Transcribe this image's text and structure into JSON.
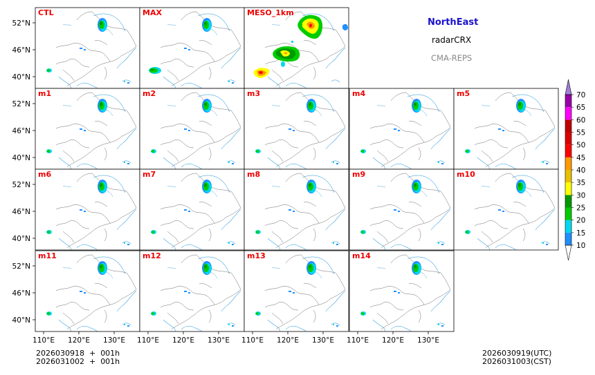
{
  "header": {
    "region": "NorthEast",
    "variable": "radarCRX",
    "model": "CMA-REPS"
  },
  "panels": [
    "CTL",
    "MAX",
    "MESO_1km",
    "m1",
    "m2",
    "m3",
    "m4",
    "m5",
    "m6",
    "m7",
    "m8",
    "m9",
    "m10",
    "m11",
    "m12",
    "m13",
    "m14"
  ],
  "axes": {
    "lat_ticks": [
      "52°N",
      "46°N",
      "40°N"
    ],
    "lon_ticks": [
      "110°E",
      "120°E",
      "130°E"
    ]
  },
  "colorbar": {
    "levels": [
      "10",
      "15",
      "20",
      "25",
      "30",
      "35",
      "40",
      "45",
      "50",
      "55",
      "60",
      "65",
      "70"
    ],
    "colors": [
      "#1e90ff",
      "#00d8f0",
      "#00cc00",
      "#009900",
      "#ffff00",
      "#e8c000",
      "#ff9900",
      "#ff0000",
      "#dd0000",
      "#c00000",
      "#ff00ff",
      "#9900aa"
    ],
    "over_color": "#a080d8",
    "under_color": "#ffffff"
  },
  "colors": {
    "label": "#ee0000",
    "border": "#6a6a6a",
    "water": "#45a8e0",
    "land": "#ffffff"
  },
  "footer": {
    "init_utc": "2026030918  +  001h",
    "init_cst": "2026031002  +  001h",
    "valid_utc": "2026030919(UTC)",
    "valid_cst": "2026031003(CST)"
  }
}
